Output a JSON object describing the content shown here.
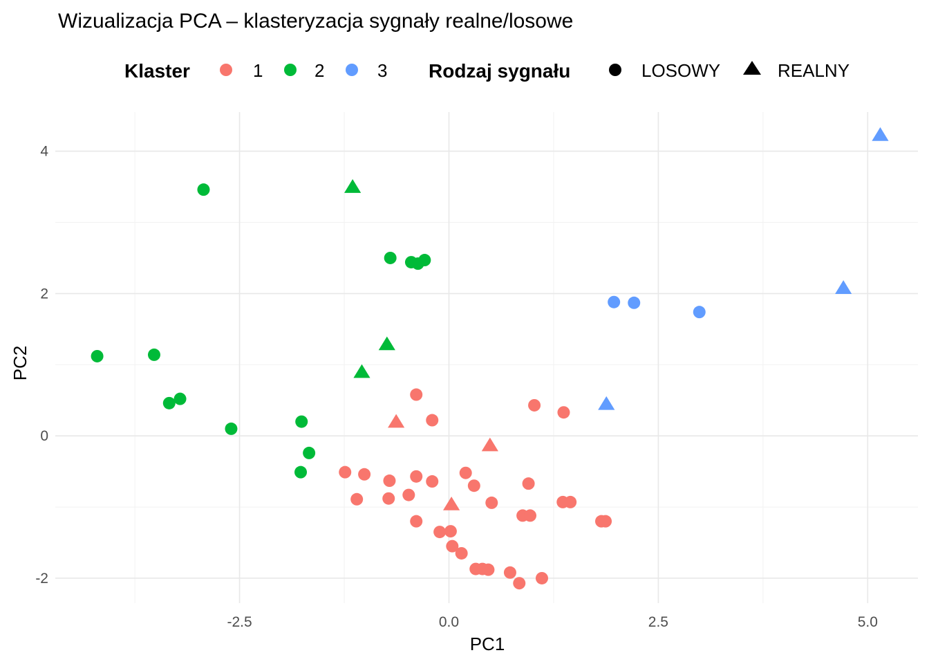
{
  "chart_data": {
    "type": "scatter",
    "title": "Wizualizacja PCA – klasteryzacja sygnały realne/losowe",
    "xlabel": "PC1",
    "ylabel": "PC2",
    "xlim": [
      -4.7,
      5.6
    ],
    "ylim": [
      -2.35,
      4.55
    ],
    "x_major_ticks": [
      -2.5,
      0.0,
      2.5,
      5.0
    ],
    "x_tick_labels": [
      "-2.5",
      "0.0",
      "2.5",
      "5.0"
    ],
    "x_minor_ticks": [
      -3.75,
      -1.25,
      1.25,
      3.75
    ],
    "y_major_ticks": [
      -2,
      0,
      2,
      4
    ],
    "y_tick_labels": [
      "-2",
      "0",
      "2",
      "4"
    ],
    "y_minor_ticks": [
      -1,
      1,
      3
    ],
    "grid": true,
    "legend_position": "top",
    "legends": [
      {
        "title": "Klaster",
        "entries": [
          {
            "label": "1",
            "color": "#F8766D"
          },
          {
            "label": "2",
            "color": "#00BA38"
          },
          {
            "label": "3",
            "color": "#619CFF"
          }
        ]
      },
      {
        "title": "Rodzaj sygnału",
        "entries": [
          {
            "label": "LOSOWY",
            "shape": "circle"
          },
          {
            "label": "REALNY",
            "shape": "triangle"
          }
        ]
      }
    ],
    "series": [
      {
        "cluster": "1",
        "color": "#F8766D",
        "points": [
          {
            "x": -0.39,
            "y": 0.58,
            "type": "LOSOWY"
          },
          {
            "x": -0.2,
            "y": 0.22,
            "type": "LOSOWY"
          },
          {
            "x": 1.02,
            "y": 0.43,
            "type": "LOSOWY"
          },
          {
            "x": 1.37,
            "y": 0.33,
            "type": "LOSOWY"
          },
          {
            "x": -1.24,
            "y": -0.51,
            "type": "LOSOWY"
          },
          {
            "x": -1.01,
            "y": -0.54,
            "type": "LOSOWY"
          },
          {
            "x": -0.71,
            "y": -0.63,
            "type": "LOSOWY"
          },
          {
            "x": -0.39,
            "y": -0.57,
            "type": "LOSOWY"
          },
          {
            "x": -0.2,
            "y": -0.64,
            "type": "LOSOWY"
          },
          {
            "x": 0.2,
            "y": -0.52,
            "type": "LOSOWY"
          },
          {
            "x": 0.3,
            "y": -0.7,
            "type": "LOSOWY"
          },
          {
            "x": 0.95,
            "y": -0.67,
            "type": "LOSOWY"
          },
          {
            "x": -1.1,
            "y": -0.89,
            "type": "LOSOWY"
          },
          {
            "x": -0.72,
            "y": -0.88,
            "type": "LOSOWY"
          },
          {
            "x": -0.48,
            "y": -0.83,
            "type": "LOSOWY"
          },
          {
            "x": 0.51,
            "y": -0.94,
            "type": "LOSOWY"
          },
          {
            "x": 1.36,
            "y": -0.93,
            "type": "LOSOWY"
          },
          {
            "x": 1.45,
            "y": -0.93,
            "type": "LOSOWY"
          },
          {
            "x": -0.39,
            "y": -1.2,
            "type": "LOSOWY"
          },
          {
            "x": 0.88,
            "y": -1.12,
            "type": "LOSOWY"
          },
          {
            "x": 0.97,
            "y": -1.12,
            "type": "LOSOWY"
          },
          {
            "x": 1.82,
            "y": -1.2,
            "type": "LOSOWY"
          },
          {
            "x": 1.87,
            "y": -1.2,
            "type": "LOSOWY"
          },
          {
            "x": -0.11,
            "y": -1.35,
            "type": "LOSOWY"
          },
          {
            "x": 0.02,
            "y": -1.34,
            "type": "LOSOWY"
          },
          {
            "x": 0.04,
            "y": -1.55,
            "type": "LOSOWY"
          },
          {
            "x": 0.15,
            "y": -1.65,
            "type": "LOSOWY"
          },
          {
            "x": 0.32,
            "y": -1.87,
            "type": "LOSOWY"
          },
          {
            "x": 0.4,
            "y": -1.87,
            "type": "LOSOWY"
          },
          {
            "x": 0.47,
            "y": -1.88,
            "type": "LOSOWY"
          },
          {
            "x": 0.73,
            "y": -1.92,
            "type": "LOSOWY"
          },
          {
            "x": 0.84,
            "y": -2.07,
            "type": "LOSOWY"
          },
          {
            "x": 1.11,
            "y": -2.0,
            "type": "LOSOWY"
          },
          {
            "x": -0.63,
            "y": 0.2,
            "type": "REALNY"
          },
          {
            "x": 0.49,
            "y": -0.13,
            "type": "REALNY"
          },
          {
            "x": 0.03,
            "y": -0.96,
            "type": "REALNY"
          }
        ]
      },
      {
        "cluster": "2",
        "color": "#00BA38",
        "points": [
          {
            "x": -2.93,
            "y": 3.46,
            "type": "LOSOWY"
          },
          {
            "x": -0.7,
            "y": 2.5,
            "type": "LOSOWY"
          },
          {
            "x": -0.45,
            "y": 2.44,
            "type": "LOSOWY"
          },
          {
            "x": -0.37,
            "y": 2.42,
            "type": "LOSOWY"
          },
          {
            "x": -0.29,
            "y": 2.47,
            "type": "LOSOWY"
          },
          {
            "x": -4.2,
            "y": 1.12,
            "type": "LOSOWY"
          },
          {
            "x": -3.52,
            "y": 1.14,
            "type": "LOSOWY"
          },
          {
            "x": -3.34,
            "y": 0.46,
            "type": "LOSOWY"
          },
          {
            "x": -3.21,
            "y": 0.52,
            "type": "LOSOWY"
          },
          {
            "x": -2.6,
            "y": 0.1,
            "type": "LOSOWY"
          },
          {
            "x": -1.76,
            "y": 0.2,
            "type": "LOSOWY"
          },
          {
            "x": -1.67,
            "y": -0.24,
            "type": "LOSOWY"
          },
          {
            "x": -1.77,
            "y": -0.51,
            "type": "LOSOWY"
          },
          {
            "x": -1.15,
            "y": 3.5,
            "type": "REALNY"
          },
          {
            "x": -0.74,
            "y": 1.29,
            "type": "REALNY"
          },
          {
            "x": -1.04,
            "y": 0.9,
            "type": "REALNY"
          }
        ]
      },
      {
        "cluster": "3",
        "color": "#619CFF",
        "points": [
          {
            "x": 1.97,
            "y": 1.88,
            "type": "LOSOWY"
          },
          {
            "x": 2.21,
            "y": 1.87,
            "type": "LOSOWY"
          },
          {
            "x": 2.99,
            "y": 1.74,
            "type": "LOSOWY"
          },
          {
            "x": 5.15,
            "y": 4.23,
            "type": "REALNY"
          },
          {
            "x": 4.71,
            "y": 2.08,
            "type": "REALNY"
          },
          {
            "x": 1.88,
            "y": 0.45,
            "type": "REALNY"
          }
        ]
      }
    ]
  }
}
